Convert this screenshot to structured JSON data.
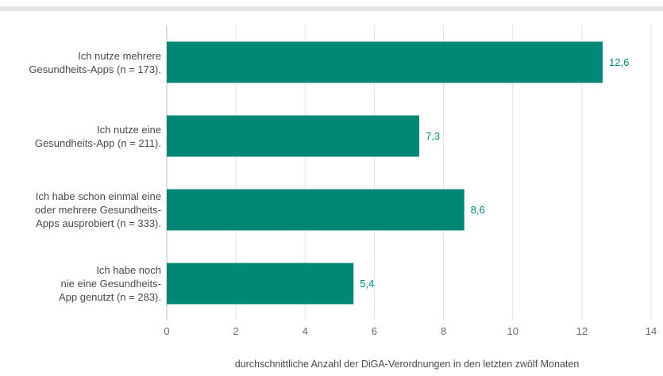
{
  "chart_data": {
    "type": "bar",
    "orientation": "horizontal",
    "categories": [
      "Ich nutze mehrere\nGesundheits-Apps (n = 173).",
      "Ich nutze eine\nGesundheits-App (n = 211).",
      "Ich habe schon einmal eine\noder mehrere Gesundheits-\nApps ausprobiert (n = 333).",
      "Ich habe noch\nnie eine Gesundheits-\nApp genutzt (n = 283)."
    ],
    "values": [
      12.6,
      7.3,
      8.6,
      5.4
    ],
    "value_labels": [
      "12,6",
      "7,3",
      "8,6",
      "5,4"
    ],
    "xlabel": "durchschnittliche Anzahl der DiGA-Verordnungen  in den letzten zwölf Monaten",
    "ylabel": "",
    "xlim": [
      0,
      14
    ],
    "xticks": [
      "0",
      "2",
      "4",
      "6",
      "8",
      "10",
      "12",
      "14"
    ],
    "grid": "vertical",
    "bar_color": "#008775",
    "label_color": "#008775"
  }
}
